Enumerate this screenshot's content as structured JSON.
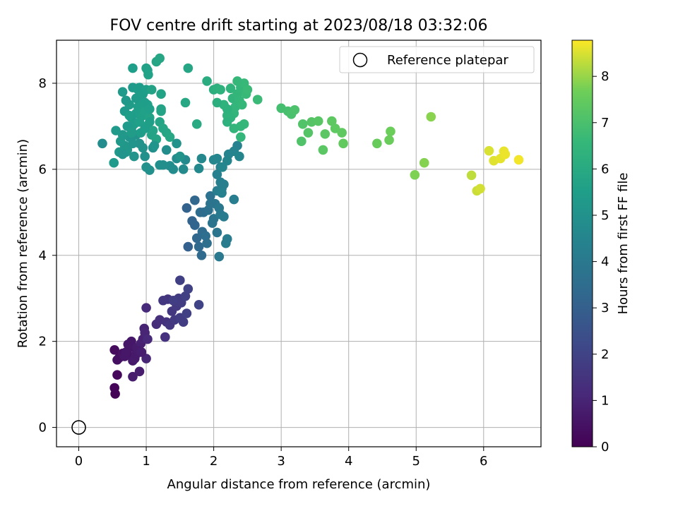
{
  "chart_data": {
    "type": "scatter",
    "title": "FOV centre drift starting at 2023/08/18 03:32:06",
    "xlabel": "Angular distance from reference (arcmin)",
    "ylabel": "Rotation from reference (arcmin)",
    "xlim": [
      -0.33,
      6.85
    ],
    "ylim": [
      -0.45,
      9.0
    ],
    "xticks": [
      0,
      1,
      2,
      3,
      4,
      5,
      6
    ],
    "yticks": [
      0,
      2,
      4,
      6,
      8
    ],
    "grid": true,
    "legend": {
      "placement": "top-right",
      "entries": [
        "Reference platepar"
      ]
    },
    "reference_point": {
      "x": 0,
      "y": 0
    },
    "colorbar": {
      "label": "Hours from first FF file",
      "colormap": "viridis",
      "range": [
        0,
        8.78
      ],
      "ticks": [
        0,
        1,
        2,
        3,
        4,
        5,
        6,
        7,
        8
      ]
    },
    "points": [
      [
        0.54,
        0.78,
        0.1
      ],
      [
        0.53,
        0.92,
        0.15
      ],
      [
        0.57,
        1.22,
        0.2
      ],
      [
        0.53,
        1.8,
        0.3
      ],
      [
        0.6,
        1.62,
        0.35
      ],
      [
        0.57,
        1.57,
        0.4
      ],
      [
        0.65,
        1.72,
        0.45
      ],
      [
        0.72,
        1.7,
        0.5
      ],
      [
        0.75,
        1.85,
        0.55
      ],
      [
        0.73,
        1.93,
        0.6
      ],
      [
        0.78,
        2.0,
        0.62
      ],
      [
        0.8,
        1.55,
        0.65
      ],
      [
        0.83,
        1.6,
        0.7
      ],
      [
        0.86,
        1.85,
        0.72
      ],
      [
        0.8,
        1.18,
        0.75
      ],
      [
        0.9,
        1.3,
        0.8
      ],
      [
        0.92,
        1.95,
        0.85
      ],
      [
        0.95,
        2.05,
        0.9
      ],
      [
        0.97,
        2.3,
        0.95
      ],
      [
        0.98,
        2.2,
        1.0
      ],
      [
        1.0,
        1.6,
        1.05
      ],
      [
        1.02,
        2.05,
        1.1
      ],
      [
        0.68,
        1.65,
        0.58
      ],
      [
        0.7,
        1.75,
        0.6
      ],
      [
        0.85,
        1.7,
        0.68
      ],
      [
        0.88,
        1.78,
        0.74
      ],
      [
        0.93,
        1.75,
        0.82
      ],
      [
        1.0,
        2.78,
        1.2
      ],
      [
        1.15,
        2.4,
        1.3
      ],
      [
        1.2,
        2.5,
        1.35
      ],
      [
        1.28,
        2.1,
        1.4
      ],
      [
        1.3,
        2.45,
        1.45
      ],
      [
        1.32,
        2.98,
        1.5
      ],
      [
        1.35,
        2.38,
        1.55
      ],
      [
        1.38,
        2.7,
        1.6
      ],
      [
        1.42,
        2.5,
        1.65
      ],
      [
        1.45,
        2.82,
        1.7
      ],
      [
        1.48,
        3.0,
        1.72
      ],
      [
        1.5,
        2.55,
        1.75
      ],
      [
        1.52,
        2.9,
        1.78
      ],
      [
        1.55,
        2.45,
        1.8
      ],
      [
        1.5,
        3.42,
        1.85
      ],
      [
        1.58,
        3.05,
        1.88
      ],
      [
        1.6,
        2.65,
        1.9
      ],
      [
        1.62,
        3.22,
        1.95
      ],
      [
        1.78,
        2.85,
        2.0
      ],
      [
        1.4,
        2.95,
        1.82
      ],
      [
        1.25,
        2.95,
        1.6
      ],
      [
        1.62,
        4.2,
        3.0
      ],
      [
        1.6,
        5.1,
        3.1
      ],
      [
        1.68,
        4.8,
        3.15
      ],
      [
        1.72,
        4.7,
        3.2
      ],
      [
        1.72,
        5.28,
        3.25
      ],
      [
        1.75,
        4.4,
        3.3
      ],
      [
        1.78,
        4.2,
        3.35
      ],
      [
        1.82,
        4.0,
        3.4
      ],
      [
        1.83,
        4.55,
        3.45
      ],
      [
        1.85,
        5.0,
        3.5
      ],
      [
        1.88,
        4.45,
        3.55
      ],
      [
        1.9,
        4.28,
        3.6
      ],
      [
        1.92,
        5.05,
        3.65
      ],
      [
        1.95,
        5.38,
        3.7
      ],
      [
        1.98,
        4.75,
        3.75
      ],
      [
        2.0,
        4.85,
        3.8
      ],
      [
        2.02,
        5.2,
        3.85
      ],
      [
        2.05,
        4.53,
        3.9
      ],
      [
        2.08,
        5.1,
        3.95
      ],
      [
        2.08,
        3.97,
        4.0
      ],
      [
        2.1,
        4.95,
        4.05
      ],
      [
        2.12,
        5.55,
        4.08
      ],
      [
        2.15,
        4.9,
        4.1
      ],
      [
        2.18,
        4.28,
        4.12
      ],
      [
        2.2,
        4.38,
        4.15
      ],
      [
        2.3,
        5.3,
        4.2
      ],
      [
        2.05,
        5.5,
        4.22
      ],
      [
        2.1,
        5.7,
        4.25
      ],
      [
        2.15,
        5.65,
        4.27
      ],
      [
        2.05,
        5.88,
        4.3
      ],
      [
        2.1,
        6.05,
        4.32
      ],
      [
        2.12,
        5.45,
        4.35
      ],
      [
        1.95,
        5.2,
        3.78
      ],
      [
        1.8,
        5.0,
        3.5
      ],
      [
        2.35,
        6.55,
        4.4
      ],
      [
        2.3,
        6.42,
        4.45
      ],
      [
        2.22,
        6.35,
        4.48
      ],
      [
        2.38,
        6.3,
        4.5
      ],
      [
        2.2,
        6.2,
        4.52
      ],
      [
        2.13,
        6.05,
        4.55
      ],
      [
        2.05,
        6.25,
        4.58
      ],
      [
        2.0,
        6.22,
        4.6
      ],
      [
        1.82,
        6.25,
        4.62
      ],
      [
        1.78,
        6.02,
        4.65
      ],
      [
        1.58,
        6.22,
        4.7
      ],
      [
        1.55,
        6.0,
        4.72
      ],
      [
        1.45,
        6.25,
        4.75
      ],
      [
        1.4,
        6.0,
        4.78
      ],
      [
        1.35,
        6.08,
        4.8
      ],
      [
        1.3,
        6.45,
        4.82
      ],
      [
        1.25,
        6.1,
        4.85
      ],
      [
        1.2,
        6.1,
        4.88
      ],
      [
        1.1,
        6.5,
        4.9
      ],
      [
        1.05,
        5.98,
        4.92
      ],
      [
        1.0,
        6.05,
        4.95
      ],
      [
        0.98,
        6.3,
        4.98
      ],
      [
        0.95,
        6.5,
        5.0
      ],
      [
        0.9,
        6.6,
        5.02
      ],
      [
        0.85,
        6.8,
        5.05
      ],
      [
        0.82,
        6.3,
        5.08
      ],
      [
        0.8,
        6.6,
        5.1
      ],
      [
        0.78,
        6.95,
        5.12
      ],
      [
        0.75,
        6.75,
        5.15
      ],
      [
        0.72,
        6.45,
        5.18
      ],
      [
        0.7,
        6.4,
        5.2
      ],
      [
        0.68,
        6.55,
        5.22
      ],
      [
        0.65,
        6.8,
        5.25
      ],
      [
        0.62,
        6.65,
        5.28
      ],
      [
        0.6,
        6.4,
        5.3
      ],
      [
        0.55,
        6.9,
        5.32
      ],
      [
        0.52,
        6.15,
        5.35
      ],
      [
        0.35,
        6.6,
        4.8
      ],
      [
        0.75,
        7.5,
        5.4
      ],
      [
        0.78,
        7.2,
        5.42
      ],
      [
        0.82,
        7.05,
        5.45
      ],
      [
        0.85,
        7.3,
        5.47
      ],
      [
        0.88,
        7.45,
        5.5
      ],
      [
        0.9,
        7.1,
        5.52
      ],
      [
        0.92,
        7.6,
        5.55
      ],
      [
        0.95,
        7.25,
        5.58
      ],
      [
        0.97,
        7.35,
        5.6
      ],
      [
        1.0,
        7.0,
        5.62
      ],
      [
        1.02,
        7.5,
        5.65
      ],
      [
        1.05,
        7.2,
        5.68
      ],
      [
        1.08,
        6.8,
        5.7
      ],
      [
        1.1,
        6.9,
        5.72
      ],
      [
        1.15,
        6.7,
        5.75
      ],
      [
        1.2,
        7.1,
        5.78
      ],
      [
        1.22,
        7.35,
        5.8
      ],
      [
        1.25,
        6.95,
        5.82
      ],
      [
        1.3,
        6.85,
        5.85
      ],
      [
        1.35,
        6.75,
        5.88
      ],
      [
        0.7,
        7.6,
        5.3
      ],
      [
        0.68,
        7.35,
        5.32
      ],
      [
        0.8,
        7.9,
        5.35
      ],
      [
        0.85,
        7.65,
        5.38
      ],
      [
        0.88,
        7.85,
        5.4
      ],
      [
        0.9,
        7.9,
        5.42
      ],
      [
        0.95,
        7.75,
        5.45
      ],
      [
        0.98,
        7.55,
        5.48
      ],
      [
        1.0,
        7.85,
        5.5
      ],
      [
        1.05,
        7.4,
        5.52
      ],
      [
        1.02,
        8.3,
        5.6
      ],
      [
        1.0,
        8.35,
        5.62
      ],
      [
        1.03,
        8.2,
        5.65
      ],
      [
        1.08,
        7.85,
        5.68
      ],
      [
        1.22,
        7.75,
        5.7
      ],
      [
        1.22,
        7.4,
        5.72
      ],
      [
        0.65,
        7.8,
        5.35
      ],
      [
        0.8,
        8.35,
        5.5
      ],
      [
        1.15,
        8.5,
        5.8
      ],
      [
        1.2,
        8.58,
        5.82
      ],
      [
        1.45,
        6.6,
        5.0
      ],
      [
        1.5,
        6.3,
        5.05
      ],
      [
        1.12,
        6.55,
        5.1
      ],
      [
        0.65,
        6.35,
        5.15
      ],
      [
        0.72,
        7.0,
        5.35
      ],
      [
        0.78,
        6.85,
        5.4
      ],
      [
        0.92,
        6.85,
        5.45
      ],
      [
        0.98,
        6.95,
        5.5
      ],
      [
        1.05,
        7.1,
        5.55
      ],
      [
        0.75,
        7.25,
        5.5
      ],
      [
        1.58,
        7.55,
        5.9
      ],
      [
        1.75,
        7.05,
        6.0
      ],
      [
        1.62,
        8.35,
        5.85
      ],
      [
        1.9,
        8.05,
        6.1
      ],
      [
        2.0,
        7.85,
        6.2
      ],
      [
        2.05,
        7.88,
        6.25
      ],
      [
        2.1,
        7.85,
        6.3
      ],
      [
        2.15,
        7.5,
        6.35
      ],
      [
        2.2,
        7.25,
        6.38
      ],
      [
        2.25,
        7.88,
        6.4
      ],
      [
        2.28,
        7.65,
        6.42
      ],
      [
        2.3,
        7.3,
        6.45
      ],
      [
        2.32,
        7.45,
        6.48
      ],
      [
        2.35,
        7.75,
        6.5
      ],
      [
        2.38,
        7.6,
        6.52
      ],
      [
        2.4,
        7.9,
        6.55
      ],
      [
        2.42,
        7.5,
        6.58
      ],
      [
        2.45,
        7.05,
        6.6
      ],
      [
        2.45,
        8.0,
        6.62
      ],
      [
        2.48,
        7.75,
        6.65
      ],
      [
        2.5,
        7.85,
        6.68
      ],
      [
        2.35,
        8.05,
        6.6
      ],
      [
        2.05,
        7.55,
        6.2
      ],
      [
        2.2,
        7.4,
        6.3
      ],
      [
        2.25,
        7.2,
        6.35
      ],
      [
        2.4,
        7.0,
        6.55
      ],
      [
        2.4,
        6.75,
        6.55
      ],
      [
        2.3,
        6.95,
        6.45
      ],
      [
        2.2,
        7.1,
        6.3
      ],
      [
        2.65,
        7.62,
        6.7
      ],
      [
        3.0,
        7.42,
        6.9
      ],
      [
        3.1,
        7.35,
        6.95
      ],
      [
        3.15,
        7.28,
        7.0
      ],
      [
        3.2,
        7.38,
        7.05
      ],
      [
        3.3,
        6.65,
        7.1
      ],
      [
        3.32,
        7.05,
        7.15
      ],
      [
        3.4,
        6.85,
        7.2
      ],
      [
        3.45,
        7.1,
        7.22
      ],
      [
        3.55,
        7.12,
        7.25
      ],
      [
        3.62,
        6.45,
        7.3
      ],
      [
        3.65,
        6.82,
        7.32
      ],
      [
        3.75,
        7.12,
        7.35
      ],
      [
        3.8,
        6.95,
        7.38
      ],
      [
        3.9,
        6.85,
        7.42
      ],
      [
        3.92,
        6.6,
        7.45
      ],
      [
        4.42,
        6.6,
        7.55
      ],
      [
        4.6,
        6.68,
        7.6
      ],
      [
        4.62,
        6.88,
        7.62
      ],
      [
        4.98,
        5.87,
        7.8
      ],
      [
        5.12,
        6.15,
        7.85
      ],
      [
        5.22,
        7.22,
        7.9
      ],
      [
        5.82,
        5.86,
        8.3
      ],
      [
        5.9,
        5.5,
        8.4
      ],
      [
        5.95,
        5.55,
        8.45
      ],
      [
        6.08,
        6.43,
        8.5
      ],
      [
        6.15,
        6.2,
        8.55
      ],
      [
        6.25,
        6.25,
        8.6
      ],
      [
        6.3,
        6.42,
        8.62
      ],
      [
        6.32,
        6.35,
        8.65
      ],
      [
        6.52,
        6.22,
        8.7
      ]
    ]
  }
}
